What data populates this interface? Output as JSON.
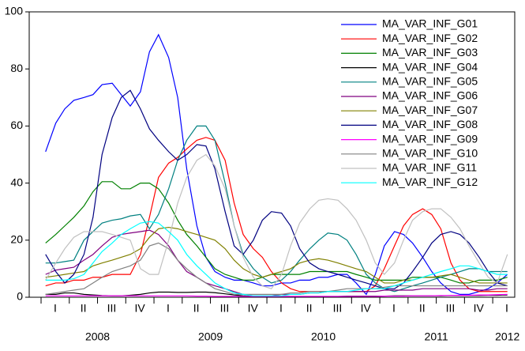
{
  "chart_data": {
    "type": "line",
    "legend": "upper right",
    "grid": false,
    "x": [
      2008.04,
      2008.13,
      2008.21,
      2008.29,
      2008.38,
      2008.46,
      2008.54,
      2008.63,
      2008.71,
      2008.79,
      2008.88,
      2008.96,
      2009.04,
      2009.13,
      2009.21,
      2009.29,
      2009.38,
      2009.46,
      2009.54,
      2009.63,
      2009.71,
      2009.79,
      2009.88,
      2009.96,
      2010.04,
      2010.13,
      2010.21,
      2010.29,
      2010.38,
      2010.46,
      2010.54,
      2010.63,
      2010.71,
      2010.79,
      2010.88,
      2010.96,
      2011.04,
      2011.13,
      2011.21,
      2011.29,
      2011.38,
      2011.46,
      2011.54,
      2011.63,
      2011.71,
      2011.79,
      2011.88,
      2011.96,
      2012.04,
      2012.13
    ],
    "xlim": [
      2007.895,
      2012.195
    ],
    "xticks": [
      {
        "value": 2008.125,
        "label": "I"
      },
      {
        "value": 2008.375,
        "label": "II"
      },
      {
        "value": 2008.625,
        "label": "III"
      },
      {
        "value": 2008.875,
        "label": "IV"
      },
      {
        "value": 2009.125,
        "label": "I"
      },
      {
        "value": 2009.375,
        "label": "II"
      },
      {
        "value": 2009.625,
        "label": "III"
      },
      {
        "value": 2009.875,
        "label": "IV"
      },
      {
        "value": 2010.125,
        "label": "I"
      },
      {
        "value": 2010.375,
        "label": "II"
      },
      {
        "value": 2010.625,
        "label": "III"
      },
      {
        "value": 2010.875,
        "label": "IV"
      },
      {
        "value": 2011.125,
        "label": "I"
      },
      {
        "value": 2011.375,
        "label": "II"
      },
      {
        "value": 2011.625,
        "label": "III"
      },
      {
        "value": 2011.875,
        "label": "IV"
      },
      {
        "value": 2012.125,
        "label": "I"
      }
    ],
    "year_labels": [
      {
        "value": 2008.5,
        "label": "2008"
      },
      {
        "value": 2009.5,
        "label": "2009"
      },
      {
        "value": 2010.5,
        "label": "2010"
      },
      {
        "value": 2011.5,
        "label": "2011"
      },
      {
        "value": 2012.13,
        "label": "2012"
      }
    ],
    "ylim": [
      0,
      100
    ],
    "yticks": [
      0,
      20,
      40,
      60,
      80,
      100
    ],
    "series": [
      {
        "name": "MA_VAR_INF_G01",
        "color": "#0000ff",
        "values": [
          51,
          61,
          66,
          69,
          70,
          71,
          74.5,
          75,
          71,
          67,
          72,
          86,
          92,
          84,
          70,
          45,
          25,
          14,
          9,
          7,
          6,
          6,
          5,
          4,
          4,
          5,
          5,
          6,
          6,
          7,
          7,
          8,
          8,
          5,
          1,
          8,
          18,
          23,
          22,
          19,
          14,
          9,
          5,
          2,
          1,
          1,
          2,
          3,
          5,
          8
        ]
      },
      {
        "name": "MA_VAR_INF_G02",
        "color": "#ff0000",
        "values": [
          4,
          5,
          5,
          6,
          6,
          7,
          7,
          8,
          8,
          8,
          15,
          28,
          42,
          47,
          49,
          52,
          55,
          56,
          55,
          48,
          33,
          22,
          17,
          14,
          9,
          5,
          3,
          2,
          2,
          2,
          2,
          2,
          2,
          2,
          2,
          4,
          10,
          18,
          25,
          29,
          31,
          29,
          24,
          12,
          6,
          3,
          2,
          2,
          2,
          2
        ]
      },
      {
        "name": "MA_VAR_INF_G03",
        "color": "#008000",
        "values": [
          19,
          22,
          25,
          28,
          32,
          37,
          40.5,
          40.5,
          38,
          38,
          40,
          40,
          38,
          33,
          27,
          22,
          18,
          14,
          10,
          8,
          7,
          6,
          6,
          7,
          8,
          8,
          8,
          8,
          9,
          9,
          9,
          9,
          9,
          8,
          7,
          6,
          6,
          6,
          6,
          7,
          7,
          7,
          7,
          6,
          5,
          5,
          6,
          6,
          6,
          7
        ]
      },
      {
        "name": "MA_VAR_INF_G04",
        "color": "#000000",
        "values": [
          1,
          1,
          1.5,
          1.5,
          1,
          0.8,
          0.6,
          0.5,
          0.5,
          0.7,
          1,
          1.5,
          1.8,
          1.8,
          1.7,
          1.7,
          1.8,
          1.8,
          1.6,
          1.2,
          0.8,
          0.5,
          0.3,
          0.3,
          0.3,
          0.3,
          0.3,
          0.3,
          0.3,
          0.3,
          0.3,
          0.3,
          0.4,
          0.4,
          0.4,
          0.4,
          0.4,
          0.5,
          0.5,
          0.5,
          0.5,
          0.5,
          0.5,
          0.6,
          0.6,
          0.6,
          0.6,
          0.7,
          0.7,
          0.8
        ]
      },
      {
        "name": "MA_VAR_INF_G05",
        "color": "#008080",
        "values": [
          12,
          12,
          12.5,
          13,
          20,
          23,
          26,
          27,
          27.5,
          28.5,
          29,
          24,
          29,
          38,
          48,
          55,
          60,
          60,
          55,
          40,
          25,
          15,
          10,
          7,
          5,
          6,
          9,
          13,
          17,
          20,
          22.5,
          22,
          20,
          15,
          8,
          5,
          3,
          2,
          3,
          4,
          5,
          6,
          7,
          8,
          9,
          10,
          10,
          9,
          9,
          9
        ]
      },
      {
        "name": "MA_VAR_INF_G06",
        "color": "#800080",
        "values": [
          8,
          9.5,
          10,
          10.5,
          13,
          15,
          18,
          21,
          22,
          22.5,
          23,
          23.5,
          22,
          18,
          13,
          9,
          7,
          5,
          4,
          3,
          2,
          1,
          0.5,
          0.5,
          0.5,
          1,
          1,
          1,
          1.5,
          1.5,
          2,
          2,
          2,
          2,
          2,
          2,
          2.5,
          2.5,
          2.5,
          2.5,
          3,
          3,
          3,
          3,
          3,
          3,
          2.5,
          2.5,
          3,
          3
        ]
      },
      {
        "name": "MA_VAR_INF_G07",
        "color": "#808000",
        "values": [
          7,
          7.5,
          8,
          8.5,
          9,
          11,
          12,
          13,
          14,
          15,
          17,
          21,
          24,
          24.5,
          24,
          23,
          22,
          21,
          20,
          17,
          13,
          10,
          8,
          7,
          8,
          9,
          10,
          12,
          13,
          13.5,
          13,
          12,
          11,
          10,
          9,
          7,
          5,
          5,
          6,
          6,
          7,
          7,
          7.5,
          8,
          7,
          6,
          5,
          5,
          5,
          5
        ]
      },
      {
        "name": "MA_VAR_INF_G08",
        "color": "#000080",
        "values": [
          15,
          9,
          5,
          8,
          15,
          28,
          50,
          63,
          70,
          72.5,
          66,
          59,
          55,
          51,
          48,
          50,
          53.5,
          53,
          45,
          30,
          18,
          15,
          20,
          27,
          30,
          29.5,
          25,
          17,
          12,
          10,
          9,
          8,
          7,
          6,
          5,
          4,
          3,
          3,
          5,
          9,
          14,
          19,
          22,
          23,
          22,
          19,
          14,
          9,
          5,
          4
        ]
      },
      {
        "name": "MA_VAR_INF_G09",
        "color": "#ff00ff",
        "values": [
          0.5,
          0.5,
          0.5,
          0.5,
          0.5,
          0.5,
          0.5,
          0.5,
          0.5,
          0.5,
          0.5,
          0.5,
          0.5,
          0.5,
          0.5,
          0.5,
          0.4,
          0.4,
          0.3,
          0.3,
          0.3,
          0.3,
          0.3,
          0.3,
          0.3,
          0.3,
          0.3,
          0.3,
          0.3,
          0.3,
          0.3,
          0.3,
          0.3,
          0.3,
          0.3,
          0.3,
          0.4,
          0.4,
          0.4,
          0.5,
          0.5,
          0.5,
          0.6,
          0.6,
          0.7,
          0.7,
          0.8,
          0.8,
          0.9,
          1
        ]
      },
      {
        "name": "MA_VAR_INF_G10",
        "color": "#808080",
        "values": [
          1,
          1.5,
          2,
          2.5,
          3,
          5,
          7,
          9,
          10,
          11,
          13,
          18,
          19,
          17,
          13,
          10,
          7,
          5,
          3,
          2,
          1,
          1,
          1,
          1,
          1,
          1,
          1.5,
          1.5,
          2,
          2,
          2,
          2.5,
          3,
          3,
          3,
          3,
          3.5,
          4,
          4,
          4,
          4,
          4,
          4,
          4,
          4,
          4,
          4,
          4,
          4,
          4
        ]
      },
      {
        "name": "MA_VAR_INF_G11",
        "color": "#c0c0c0",
        "values": [
          6,
          12,
          17,
          21,
          23,
          23,
          23,
          22,
          21,
          20,
          10,
          8,
          8,
          20,
          33,
          42,
          48,
          50,
          46,
          38,
          25,
          14,
          7,
          4,
          3,
          8,
          18,
          26,
          31,
          34,
          34.5,
          34,
          31,
          27,
          20,
          12,
          8,
          12,
          20,
          27,
          30,
          31,
          31,
          28,
          24,
          18,
          12,
          7,
          5,
          15
        ]
      },
      {
        "name": "MA_VAR_INF_G12",
        "color": "#00ffff",
        "values": [
          6,
          6,
          6,
          6.5,
          8,
          12,
          16,
          19,
          22,
          24,
          26,
          26.5,
          26,
          23,
          20,
          15,
          11,
          8,
          5,
          3,
          1.5,
          1,
          0.5,
          0.5,
          0.5,
          0.5,
          1,
          1,
          1.5,
          1.5,
          2,
          2,
          2,
          2.5,
          3,
          3,
          3,
          4,
          5,
          6,
          7,
          8,
          9,
          10,
          11,
          11,
          10,
          9,
          8,
          8
        ]
      }
    ]
  }
}
